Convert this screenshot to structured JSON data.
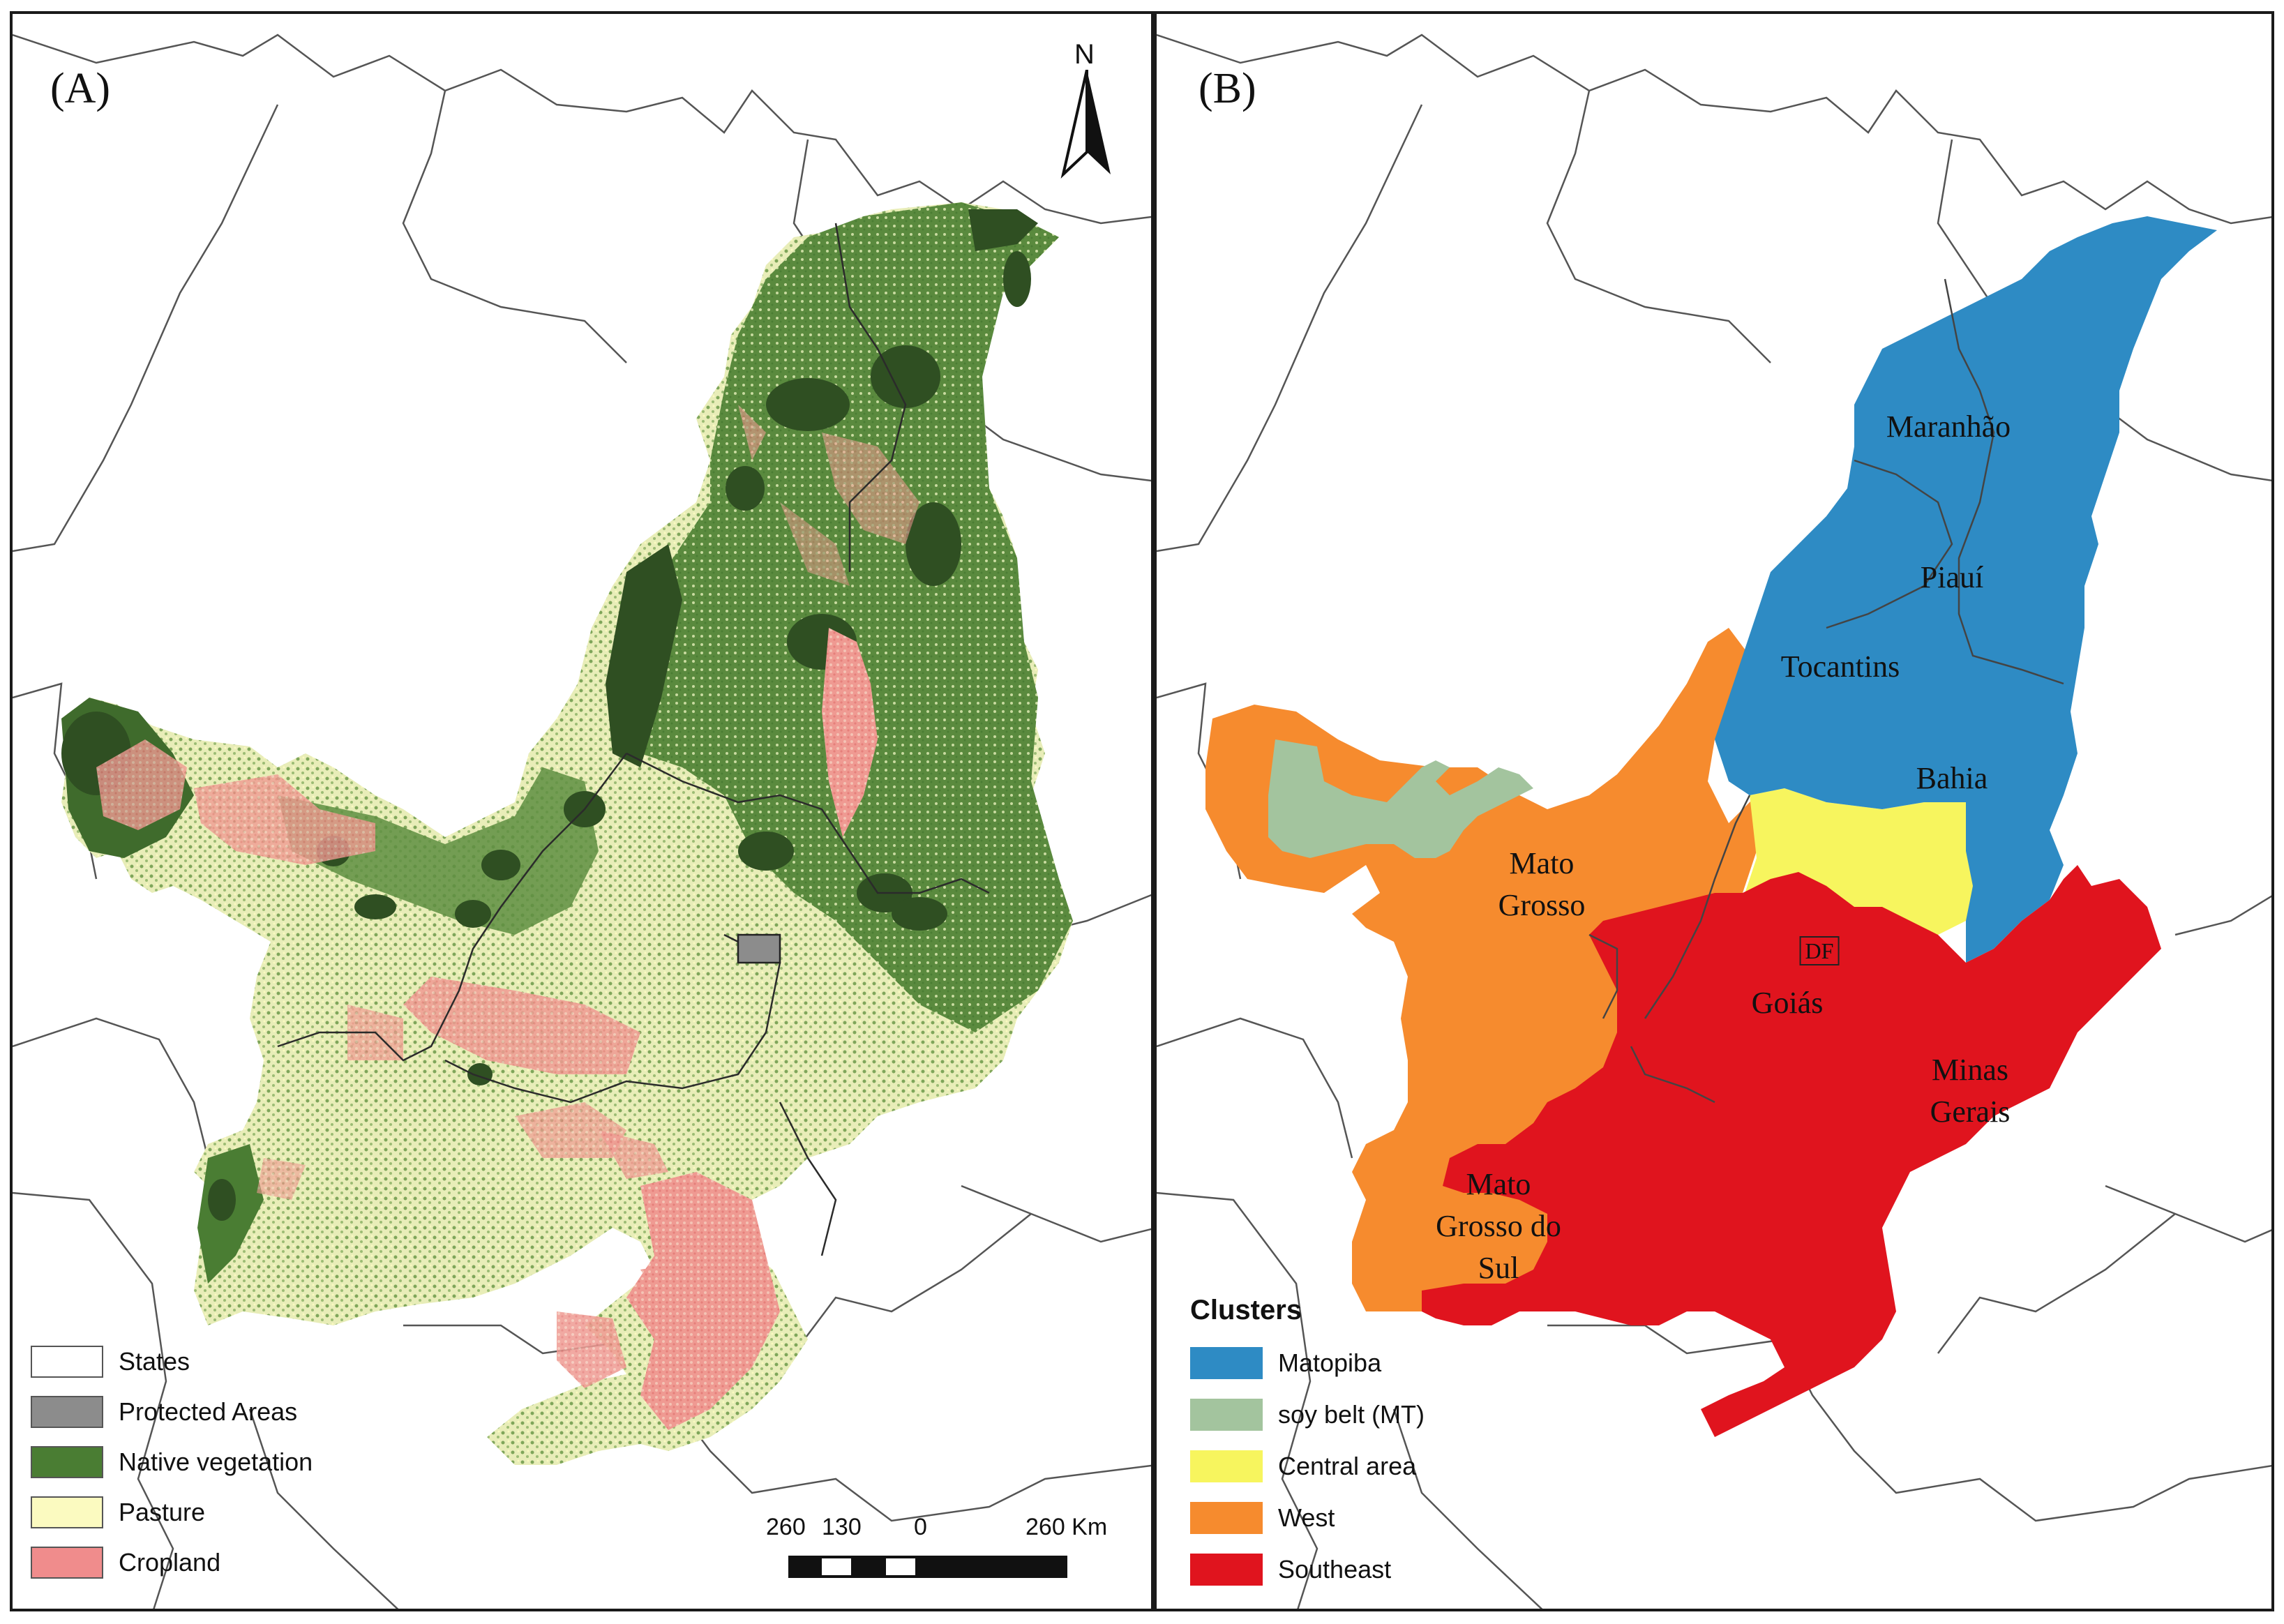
{
  "panels": {
    "a": {
      "label": "(A)",
      "north": "N",
      "legend": [
        {
          "label": "States",
          "color": "#ffffff"
        },
        {
          "label": "Protected Areas",
          "color": "#8c8c8c"
        },
        {
          "label": "Native vegetation",
          "color": "#4a7d33"
        },
        {
          "label": "Pasture",
          "color": "#fbfac0"
        },
        {
          "label": "Cropland",
          "color": "#f08c8c"
        }
      ],
      "scale_bar": {
        "labels": [
          "260",
          "130",
          "0",
          "260 Km"
        ]
      }
    },
    "b": {
      "label": "(B)",
      "legend_title": "Clusters",
      "legend": [
        {
          "label": "Matopiba",
          "color": "#2e8bc4"
        },
        {
          "label": "soy belt (MT)",
          "color": "#a3c49e"
        },
        {
          "label": "Central area",
          "color": "#f7f55e"
        },
        {
          "label": "West",
          "color": "#f68b2e"
        },
        {
          "label": "Southeast",
          "color": "#e0141e"
        }
      ],
      "state_labels": {
        "maranhao": "Maranhão",
        "piaui": "Piauí",
        "tocantins": "Tocantins",
        "bahia": "Bahia",
        "mato_grosso": [
          "Mato",
          "Grosso"
        ],
        "goias": "Goiás",
        "df": "DF",
        "minas_gerais": [
          "Minas",
          "Gerais"
        ],
        "ms": [
          "Mato",
          "Grosso do",
          "Sul"
        ]
      }
    }
  }
}
